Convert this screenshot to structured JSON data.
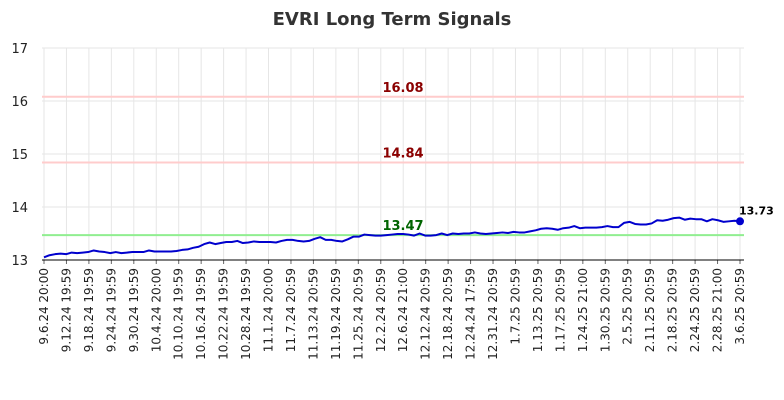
{
  "chart_data": {
    "type": "line",
    "title": "EVRI Long Term Signals",
    "xlabel": "",
    "ylabel": "",
    "ylim": [
      13,
      17
    ],
    "yticks": [
      "13",
      "14",
      "15",
      "16",
      "17"
    ],
    "grid": true,
    "xtick_labels": [
      "9.6.24 20:00",
      "9.12.24 19:59",
      "9.18.24 19:59",
      "9.24.24 19:59",
      "9.30.24 19:59",
      "10.4.24 20:00",
      "10.10.24 19:59",
      "10.16.24 19:59",
      "10.22.24 19:59",
      "10.28.24 19:59",
      "11.1.24 20:00",
      "11.7.24 20:59",
      "11.13.24 20:59",
      "11.19.24 20:59",
      "11.25.24 20:59",
      "12.2.24 20:59",
      "12.6.24 21:00",
      "12.12.24 20:59",
      "12.18.24 20:59",
      "12.24.24 17:59",
      "12.31.24 20:59",
      "1.7.25 20:59",
      "1.13.25 20:59",
      "1.17.25 20:59",
      "1.24.25 21:00",
      "1.30.25 20:59",
      "2.5.25 20:59",
      "2.11.25 20:59",
      "2.18.25 20:59",
      "2.24.25 20:59",
      "2.28.25 21:00",
      "3.6.25 20:59"
    ],
    "series": [
      {
        "values": [
          13.05,
          13.09,
          13.11,
          13.12,
          13.11,
          13.14,
          13.13,
          13.14,
          13.15,
          13.18,
          13.16,
          13.15,
          13.13,
          13.15,
          13.13,
          13.14,
          13.15,
          13.15,
          13.15,
          13.18,
          13.16,
          13.16,
          13.16,
          13.16,
          13.17,
          13.19,
          13.2,
          13.23,
          13.25,
          13.3,
          13.33,
          13.3,
          13.32,
          13.34,
          13.34,
          13.36,
          13.32,
          13.33,
          13.35,
          13.34,
          13.34,
          13.34,
          13.33,
          13.36,
          13.38,
          13.38,
          13.36,
          13.35,
          13.36,
          13.4,
          13.43,
          13.38,
          13.38,
          13.36,
          13.35,
          13.39,
          13.44,
          13.44,
          13.48,
          13.47,
          13.46,
          13.46,
          13.47,
          13.48,
          13.49,
          13.49,
          13.48,
          13.46,
          13.5,
          13.46,
          13.46,
          13.47,
          13.5,
          13.47,
          13.5,
          13.49,
          13.5,
          13.5,
          13.52,
          13.5,
          13.49,
          13.5,
          13.51,
          13.52,
          13.51,
          13.53,
          13.52,
          13.52,
          13.54,
          13.56,
          13.59,
          13.6,
          13.59,
          13.57,
          13.6,
          13.61,
          13.64,
          13.6,
          13.61,
          13.61,
          13.61,
          13.62,
          13.64,
          13.62,
          13.62,
          13.7,
          13.72,
          13.68,
          13.67,
          13.67,
          13.69,
          13.75,
          13.74,
          13.76,
          13.79,
          13.8,
          13.76,
          13.78,
          13.77,
          13.77,
          13.73,
          13.77,
          13.75,
          13.72,
          13.73,
          13.74,
          13.73
        ]
      }
    ],
    "levels": [
      {
        "value": 16.08,
        "label": "16.08",
        "line_color": "#ffcccc",
        "label_color": "#8b0000"
      },
      {
        "value": 14.84,
        "label": "14.84",
        "line_color": "#ffcccc",
        "label_color": "#8b0000"
      },
      {
        "value": 13.47,
        "label": "13.47",
        "line_color": "#90ee90",
        "label_color": "#006400"
      }
    ],
    "last_value_label": "13.73",
    "colors": {
      "line": "#0000cd",
      "grid": "#e6e6e6",
      "axis": "#000000"
    }
  }
}
